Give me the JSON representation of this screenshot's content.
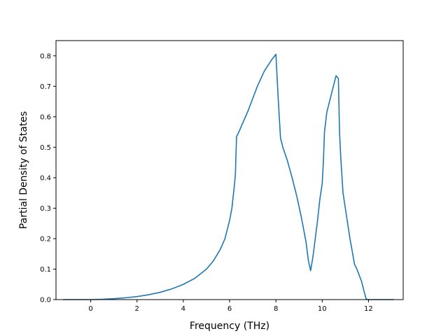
{
  "chart_data": {
    "type": "line",
    "title": "",
    "xlabel": "Frequency (THz)",
    "ylabel": "Partial Density of States",
    "xlim": [
      -1.5,
      13.5
    ],
    "ylim": [
      0.0,
      0.85
    ],
    "xticks": [
      0,
      2,
      4,
      6,
      8,
      10,
      12
    ],
    "yticks": [
      0.0,
      0.1,
      0.2,
      0.3,
      0.4,
      0.5,
      0.6,
      0.7,
      0.8
    ],
    "xtick_labels": [
      "0",
      "2",
      "4",
      "6",
      "8",
      "10",
      "12"
    ],
    "ytick_labels": [
      "0.0",
      "0.1",
      "0.2",
      "0.3",
      "0.4",
      "0.5",
      "0.6",
      "0.7",
      "0.8"
    ],
    "grid": false,
    "legend": "none",
    "series": [
      {
        "color": "#1f77b4",
        "x": [
          -1.2,
          -0.5,
          0.0,
          0.5,
          1.0,
          1.5,
          2.0,
          2.5,
          3.0,
          3.5,
          4.0,
          4.5,
          5.0,
          5.3,
          5.6,
          5.8,
          6.0,
          6.1,
          6.2,
          6.25,
          6.3,
          6.4,
          6.8,
          7.2,
          7.5,
          7.8,
          7.95,
          8.0,
          8.1,
          8.2,
          8.3,
          8.5,
          8.7,
          8.9,
          9.1,
          9.3,
          9.4,
          9.5,
          9.6,
          9.7,
          9.8,
          9.9,
          10.0,
          10.05,
          10.1,
          10.2,
          10.4,
          10.6,
          10.65,
          10.7,
          10.75,
          10.8,
          10.9,
          11.0,
          11.2,
          11.4,
          11.5,
          11.7,
          11.8,
          11.9,
          12.0,
          12.5,
          13.1
        ],
        "y": [
          0.0,
          0.0,
          0.0,
          0.001,
          0.003,
          0.006,
          0.01,
          0.016,
          0.024,
          0.035,
          0.05,
          0.07,
          0.1,
          0.127,
          0.165,
          0.2,
          0.26,
          0.3,
          0.37,
          0.41,
          0.535,
          0.55,
          0.62,
          0.7,
          0.75,
          0.785,
          0.8,
          0.805,
          0.66,
          0.53,
          0.5,
          0.455,
          0.4,
          0.34,
          0.27,
          0.19,
          0.13,
          0.095,
          0.14,
          0.2,
          0.26,
          0.33,
          0.38,
          0.45,
          0.55,
          0.615,
          0.675,
          0.735,
          0.73,
          0.725,
          0.55,
          0.47,
          0.35,
          0.3,
          0.2,
          0.115,
          0.1,
          0.06,
          0.03,
          0.002,
          0.0,
          0.0,
          0.0
        ]
      }
    ]
  }
}
